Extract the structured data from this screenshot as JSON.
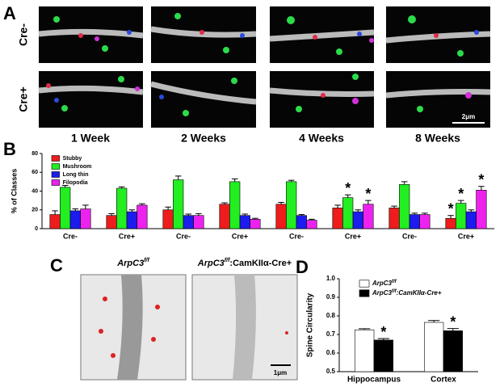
{
  "panel_a": {
    "letter": "A",
    "rows": [
      "Cre-",
      "Cre+"
    ],
    "columns": [
      "1 Week",
      "2 Weeks",
      "4 Weeks",
      "8 Weeks"
    ],
    "scale_bar": "2μm"
  },
  "panel_c": {
    "letter": "C",
    "left": {
      "name": "ArpC3",
      "sup": "f/f"
    },
    "right": {
      "name": "ArpC3",
      "sup": "f/f",
      "suffix": ":CamKIIα-Cre+"
    },
    "scale_bar": "1μm"
  },
  "chart_data": [
    {
      "type": "bar",
      "letter": "B",
      "ylabel": "% of Classes",
      "categories": [
        "Cre-",
        "Cre+",
        "Cre-",
        "Cre+",
        "Cre-",
        "Cre+",
        "Cre-",
        "Cre+"
      ],
      "ylim": [
        0,
        80
      ],
      "yticks": [
        0,
        20,
        40,
        60,
        80
      ],
      "legend": "top-left",
      "series": [
        {
          "name": "Stubby",
          "color": "#ee1c1c",
          "values": [
            15,
            14,
            20,
            26,
            26,
            22,
            22,
            11
          ],
          "errors": [
            4,
            2,
            3,
            1.5,
            2,
            3,
            2,
            3
          ]
        },
        {
          "name": "Mushroom",
          "color": "#22ee22",
          "values": [
            44,
            43,
            52,
            50,
            50,
            33,
            47,
            27
          ],
          "errors": [
            2,
            1.5,
            4,
            3,
            1.5,
            3,
            3,
            3
          ]
        },
        {
          "name": "Long thin",
          "color": "#1c1cee",
          "values": [
            19,
            18,
            14,
            14,
            14,
            18,
            15,
            18
          ],
          "errors": [
            2,
            2,
            1.5,
            1.5,
            1,
            2,
            1.5,
            2
          ]
        },
        {
          "name": "Filopodia",
          "color": "#ee22ee",
          "values": [
            21,
            25,
            14,
            10,
            9,
            26,
            15,
            41
          ],
          "errors": [
            4,
            1.5,
            2,
            1,
            1,
            4,
            1.5,
            4
          ]
        }
      ],
      "annotations": [
        {
          "text": "*",
          "series": 1,
          "category": 5
        },
        {
          "text": "*",
          "series": 3,
          "category": 5
        },
        {
          "text": "*",
          "series": 0,
          "category": 7
        },
        {
          "text": "*",
          "series": 1,
          "category": 7
        },
        {
          "text": "*",
          "series": 3,
          "category": 7
        }
      ]
    },
    {
      "type": "bar",
      "letter": "D",
      "ylabel": "Spine Circularity",
      "categories": [
        "Hippocampus",
        "Cortex"
      ],
      "ylim": [
        0.5,
        1
      ],
      "yticks": [
        0.5,
        0.6,
        0.7,
        0.8,
        0.9,
        {
          "value": 1,
          "label": "1.0"
        }
      ],
      "legend": "top-right",
      "series": [
        {
          "name": "ArpC3",
          "name_sup": "f/f",
          "color": "#ffffff",
          "values": [
            0.725,
            0.765
          ],
          "errors": [
            0.006,
            0.01
          ]
        },
        {
          "name": "ArpC3",
          "name_sup": "f/f",
          "name_suffix": ":CamKIIα-Cre+",
          "color": "#000000",
          "values": [
            0.67,
            0.72
          ],
          "errors": [
            0.008,
            0.012
          ]
        }
      ],
      "annotations": [
        {
          "text": "*",
          "series": 1,
          "category": 0
        },
        {
          "text": "*",
          "series": 1,
          "category": 1
        }
      ]
    }
  ]
}
